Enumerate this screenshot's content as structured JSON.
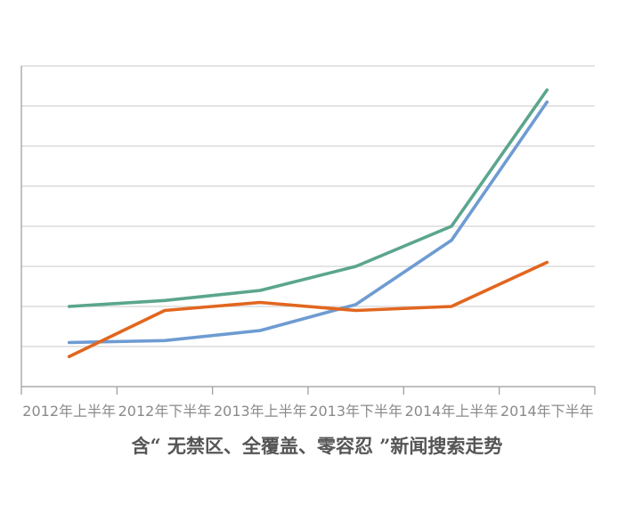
{
  "chart_data": {
    "type": "line",
    "title": "含“ 无禁区、全覆盖、零容忍 ”新闻搜索走势",
    "xlabel": "",
    "ylabel": "",
    "categories": [
      "2012年上半年",
      "2012年下半年",
      "2013年上半年",
      "2013年下半年",
      "2014年上半年",
      "2014年下半年"
    ],
    "ylim": [
      0,
      8
    ],
    "grid": true,
    "legend": "none",
    "series": [
      {
        "color": "#5ba58e",
        "values": [
          2.0,
          2.15,
          2.4,
          3.0,
          4.0,
          7.4
        ]
      },
      {
        "color": "#6e9bd2",
        "values": [
          1.1,
          1.15,
          1.4,
          2.05,
          3.65,
          7.1
        ]
      },
      {
        "color": "#e2661f",
        "values": [
          0.75,
          1.9,
          2.1,
          1.9,
          2.0,
          3.1
        ]
      }
    ]
  }
}
